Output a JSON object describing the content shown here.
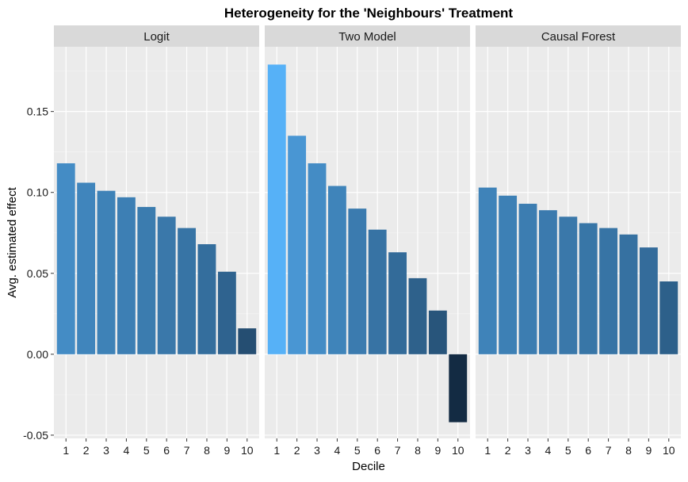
{
  "chart_data": {
    "type": "bar",
    "title": "Heterogeneity for the 'Neighbours' Treatment",
    "xlabel": "Decile",
    "ylabel": "Avg. estimated effect",
    "ylim": [
      -0.052,
      0.19
    ],
    "yticks": [
      -0.05,
      0.0,
      0.05,
      0.1,
      0.15
    ],
    "ytick_labels": [
      "-0.05",
      "0.00",
      "0.05",
      "0.10",
      "0.15"
    ],
    "categories": [
      "1",
      "2",
      "3",
      "4",
      "5",
      "6",
      "7",
      "8",
      "9",
      "10"
    ],
    "grid": true,
    "fill_scale": {
      "low": "#132B43",
      "high": "#56B1F7"
    },
    "panels": [
      {
        "name": "Logit",
        "values": [
          0.118,
          0.106,
          0.101,
          0.097,
          0.091,
          0.085,
          0.078,
          0.068,
          0.051,
          0.016
        ]
      },
      {
        "name": "Two Model",
        "values": [
          0.179,
          0.135,
          0.118,
          0.104,
          0.09,
          0.077,
          0.063,
          0.047,
          0.027,
          -0.042
        ]
      },
      {
        "name": "Causal Forest",
        "values": [
          0.103,
          0.098,
          0.093,
          0.089,
          0.085,
          0.081,
          0.078,
          0.074,
          0.066,
          0.045
        ]
      }
    ]
  }
}
